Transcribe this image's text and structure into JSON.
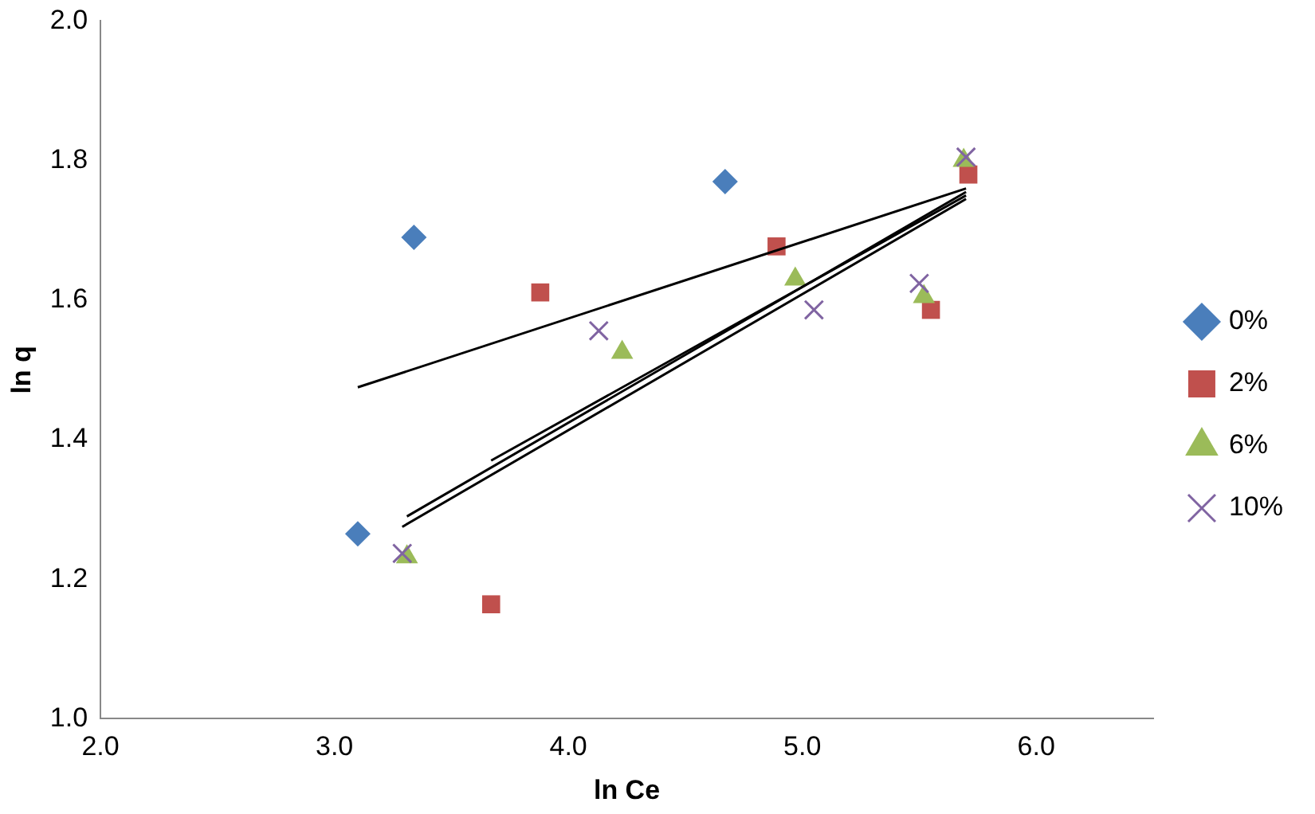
{
  "chart_data": {
    "type": "scatter",
    "xlabel": "ln Ce",
    "ylabel": "ln q",
    "xlim": [
      2,
      6.5
    ],
    "xticks": [
      {
        "value": 2,
        "label": "2.0"
      },
      {
        "value": 3,
        "label": "3.0"
      },
      {
        "value": 4,
        "label": "4.0"
      },
      {
        "value": 5,
        "label": "5.0"
      },
      {
        "value": 6,
        "label": "6.0"
      }
    ],
    "ylim": [
      1,
      2
    ],
    "yticks": [
      {
        "value": 1,
        "label": "1.0"
      },
      {
        "value": 1.2,
        "label": "1.2"
      },
      {
        "value": 1.4,
        "label": "1.4"
      },
      {
        "value": 1.6,
        "label": "1.6"
      },
      {
        "value": 1.8,
        "label": "1.8"
      },
      {
        "value": 2,
        "label": "2.0"
      }
    ],
    "grid": false,
    "legend": "right",
    "series": [
      {
        "name": "0%",
        "color": "#4a7ebb",
        "marker": "diamond",
        "x": [
          3.1,
          3.34,
          4.67
        ],
        "values": [
          1.265,
          1.69,
          1.77
        ]
      },
      {
        "name": "2%",
        "color": "#c0504d",
        "marker": "square",
        "x": [
          3.67,
          3.88,
          4.89,
          5.55,
          5.71
        ],
        "values": [
          1.164,
          1.611,
          1.677,
          1.586,
          1.78
        ]
      },
      {
        "name": "6%",
        "color": "#9bbb59",
        "marker": "triangle",
        "x": [
          3.31,
          4.23,
          4.97,
          5.52,
          5.69
        ],
        "values": [
          1.232,
          1.525,
          1.63,
          1.605,
          1.8
        ]
      },
      {
        "name": "10%",
        "color": "#8064a2",
        "marker": "cross",
        "x": [
          3.29,
          4.13,
          5.05,
          5.5,
          5.7
        ],
        "values": [
          1.237,
          1.556,
          1.586,
          1.624,
          1.805
        ]
      },
      {
        "type": "line",
        "color": "#000000",
        "marker": "none",
        "x": [
          3.1,
          5.7
        ],
        "values": [
          1.475,
          1.76
        ]
      },
      {
        "type": "line",
        "color": "#000000",
        "marker": "none",
        "x": [
          3.67,
          5.7
        ],
        "values": [
          1.37,
          1.75
        ]
      },
      {
        "type": "line",
        "color": "#000000",
        "marker": "none",
        "x": [
          3.31,
          5.7
        ],
        "values": [
          1.29,
          1.755
        ]
      },
      {
        "type": "line",
        "color": "#000000",
        "marker": "none",
        "x": [
          3.29,
          5.7
        ],
        "values": [
          1.275,
          1.745
        ]
      }
    ]
  }
}
